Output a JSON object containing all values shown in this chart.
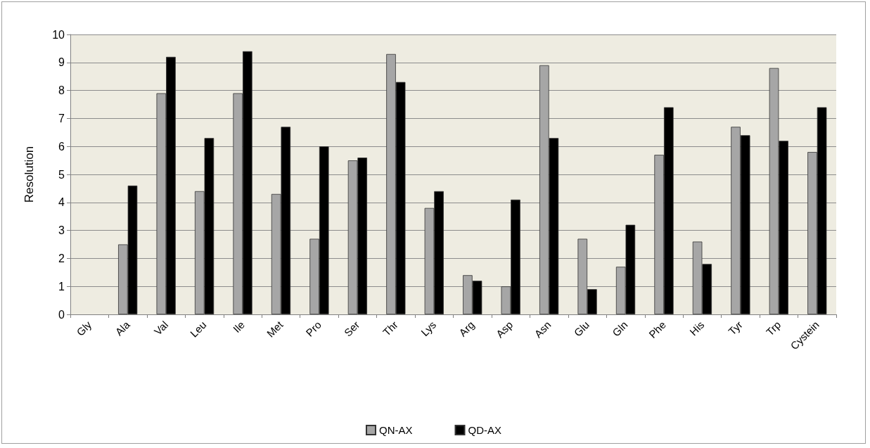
{
  "chart_data": {
    "type": "bar",
    "ylabel": "Resolution",
    "categories": [
      "Gly",
      "Ala",
      "Val",
      "Leu",
      "Ile",
      "Met",
      "Pro",
      "Ser",
      "Thr",
      "Lys",
      "Arg",
      "Asp",
      "Asn",
      "Glu",
      "Gln",
      "Phe",
      "His",
      "Tyr",
      "Trp",
      "Cystein"
    ],
    "series": [
      {
        "name": "QN-AX",
        "color": "#a6a6a6",
        "values": [
          null,
          2.5,
          7.9,
          4.4,
          7.9,
          4.3,
          2.7,
          5.5,
          9.3,
          3.8,
          1.4,
          1.0,
          8.9,
          2.7,
          1.7,
          5.7,
          2.6,
          6.7,
          8.8,
          5.8
        ]
      },
      {
        "name": "QD-AX",
        "color": "#000000",
        "values": [
          null,
          4.6,
          9.2,
          6.3,
          9.4,
          6.7,
          6.0,
          5.6,
          8.3,
          4.4,
          1.2,
          4.1,
          6.3,
          0.9,
          3.2,
          7.4,
          1.8,
          6.4,
          6.2,
          7.4
        ]
      }
    ],
    "ylim": [
      0,
      10
    ],
    "yticks": [
      0,
      1,
      2,
      3,
      4,
      5,
      6,
      7,
      8,
      9,
      10
    ],
    "grid": "y",
    "legend": "bottom"
  }
}
